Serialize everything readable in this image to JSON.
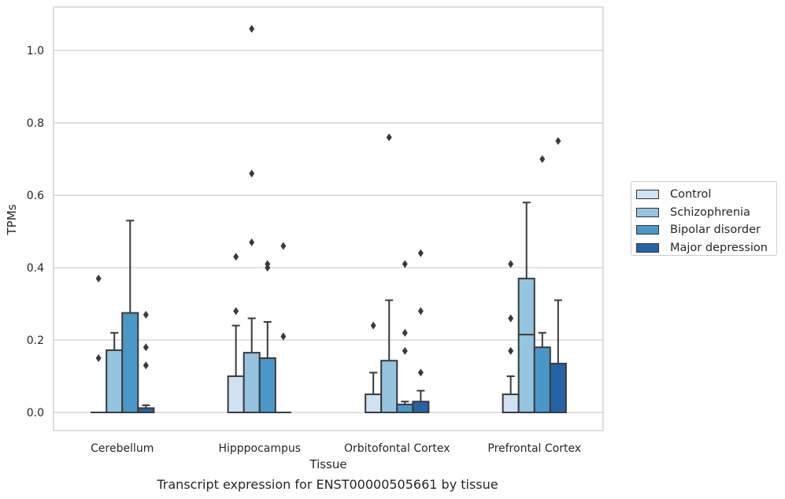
{
  "chart_data": {
    "type": "box",
    "caption": "Transcript expression for ENST00000505661 by tissue",
    "xlabel": "Tissue",
    "ylabel": "TPMs",
    "ylim": [
      -0.05,
      1.12
    ],
    "yticks": [
      "0.0",
      "0.2",
      "0.4",
      "0.6",
      "0.8",
      "1.0"
    ],
    "grid": true,
    "legend_position": "right",
    "categories": [
      "Cerebellum",
      "Hipppocampus",
      "Orbitofontal Cortex",
      "Prefrontal Cortex"
    ],
    "series": [
      {
        "name": "Control",
        "color": "#d0e1f2",
        "boxes": [
          {
            "q1": 0,
            "median": 0,
            "q3": 0,
            "whisker_low": 0,
            "whisker_high": 0,
            "outliers": [
              0.15,
              0.37
            ]
          },
          {
            "q1": 0,
            "median": 0,
            "q3": 0.1,
            "whisker_low": 0,
            "whisker_high": 0.24,
            "outliers": [
              0.28,
              0.43
            ]
          },
          {
            "q1": 0,
            "median": 0,
            "q3": 0.05,
            "whisker_low": 0,
            "whisker_high": 0.11,
            "outliers": [
              0.24
            ]
          },
          {
            "q1": 0,
            "median": 0,
            "q3": 0.05,
            "whisker_low": 0,
            "whisker_high": 0.1,
            "outliers": [
              0.17,
              0.26,
              0.41
            ]
          }
        ]
      },
      {
        "name": "Schizophrenia",
        "color": "#94c4df",
        "boxes": [
          {
            "q1": 0,
            "median": 0,
            "q3": 0.172,
            "whisker_low": 0,
            "whisker_high": 0.22,
            "outliers": []
          },
          {
            "q1": 0,
            "median": 0,
            "q3": 0.165,
            "whisker_low": 0,
            "whisker_high": 0.26,
            "outliers": [
              0.47,
              0.66,
              1.06
            ]
          },
          {
            "q1": 0,
            "median": 0,
            "q3": 0.143,
            "whisker_low": 0,
            "whisker_high": 0.31,
            "outliers": [
              0.76
            ]
          },
          {
            "q1": 0,
            "median": 0.215,
            "q3": 0.37,
            "whisker_low": 0,
            "whisker_high": 0.58,
            "outliers": []
          }
        ]
      },
      {
        "name": "Bipolar disorder",
        "color": "#4a98c9",
        "boxes": [
          {
            "q1": 0,
            "median": 0,
            "q3": 0.275,
            "whisker_low": 0,
            "whisker_high": 0.53,
            "outliers": []
          },
          {
            "q1": 0,
            "median": 0,
            "q3": 0.15,
            "whisker_low": 0,
            "whisker_high": 0.25,
            "outliers": [
              0.4,
              0.41
            ]
          },
          {
            "q1": 0,
            "median": 0,
            "q3": 0.022,
            "whisker_low": 0,
            "whisker_high": 0.03,
            "outliers": [
              0.17,
              0.22,
              0.41
            ]
          },
          {
            "q1": 0,
            "median": 0,
            "q3": 0.18,
            "whisker_low": 0,
            "whisker_high": 0.22,
            "outliers": [
              0.7
            ]
          }
        ]
      },
      {
        "name": "Major depression",
        "color": "#2464a6",
        "boxes": [
          {
            "q1": 0,
            "median": 0,
            "q3": 0.012,
            "whisker_low": 0,
            "whisker_high": 0.02,
            "outliers": [
              0.13,
              0.18,
              0.27
            ]
          },
          {
            "q1": 0,
            "median": 0,
            "q3": 0,
            "whisker_low": 0,
            "whisker_high": 0,
            "outliers": [
              0.21,
              0.46
            ]
          },
          {
            "q1": 0,
            "median": 0,
            "q3": 0.03,
            "whisker_low": 0,
            "whisker_high": 0.06,
            "outliers": [
              0.11,
              0.28,
              0.44
            ]
          },
          {
            "q1": 0,
            "median": 0,
            "q3": 0.135,
            "whisker_low": 0,
            "whisker_high": 0.31,
            "outliers": [
              0.75
            ]
          }
        ]
      }
    ]
  }
}
